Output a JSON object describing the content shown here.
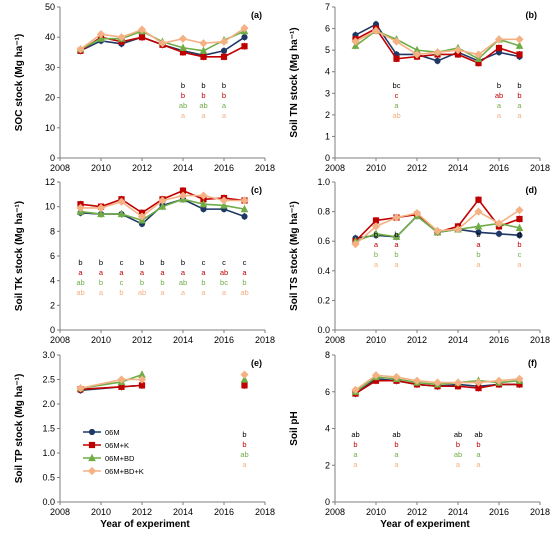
{
  "colors": {
    "06M": "#1f3864",
    "06M+K": "#c00000",
    "06M+BD": "#70ad47",
    "06M+BD+K": "#f4b183",
    "axis": "#7f7f7f"
  },
  "legend": [
    "06M",
    "06M+K",
    "06M+BD",
    "06M+BD+K"
  ],
  "x_axis_title": "Year of experiment",
  "chart_data": [
    {
      "id": "a",
      "panel_label": "(a)",
      "type": "line",
      "ylabel": "SOC stock (Mg ha⁻¹)",
      "xlim": [
        2008,
        2018
      ],
      "xticks": [
        2008,
        2010,
        2012,
        2014,
        2016,
        2018
      ],
      "ylim": [
        0,
        50
      ],
      "yticks": [
        0,
        10,
        20,
        30,
        40,
        50
      ],
      "x": [
        2009,
        2010,
        2011,
        2012,
        2013,
        2014,
        2015,
        2016,
        2017
      ],
      "series": [
        {
          "name": "06M",
          "values": [
            35.5,
            38.8,
            37.8,
            40,
            37.5,
            35.5,
            34,
            35.5,
            40
          ]
        },
        {
          "name": "06M+K",
          "values": [
            35.5,
            40,
            38.5,
            40,
            37.5,
            35,
            33.5,
            33.5,
            37
          ]
        },
        {
          "name": "06M+BD",
          "values": [
            36,
            39.5,
            39.5,
            42,
            38.5,
            36.5,
            35.5,
            39,
            42
          ]
        },
        {
          "name": "06M+BD+K",
          "values": [
            36,
            41,
            40,
            42.5,
            38,
            39.5,
            38,
            38.5,
            43
          ]
        }
      ],
      "letters": [
        {
          "x": 2014,
          "values": [
            "b",
            "b",
            "ab",
            "a"
          ]
        },
        {
          "x": 2015,
          "values": [
            "b",
            "b",
            "ab",
            "a"
          ]
        },
        {
          "x": 2016,
          "values": [
            "b",
            "b",
            "a",
            "a"
          ]
        }
      ]
    },
    {
      "id": "b",
      "panel_label": "(b)",
      "type": "line",
      "ylabel": "Soil TN stock (Mg ha⁻¹)",
      "xlim": [
        2008,
        2018
      ],
      "xticks": [
        2008,
        2010,
        2012,
        2014,
        2016,
        2018
      ],
      "ylim": [
        0,
        7
      ],
      "yticks": [
        0,
        1,
        2,
        3,
        4,
        5,
        6,
        7
      ],
      "x": [
        2009,
        2010,
        2011,
        2012,
        2013,
        2014,
        2015,
        2016,
        2017
      ],
      "series": [
        {
          "name": "06M",
          "values": [
            5.7,
            6.2,
            4.8,
            4.8,
            4.5,
            4.9,
            4.5,
            4.9,
            4.7
          ]
        },
        {
          "name": "06M+K",
          "values": [
            5.5,
            6,
            4.6,
            4.7,
            4.8,
            4.8,
            4.4,
            5.1,
            4.8
          ]
        },
        {
          "name": "06M+BD",
          "values": [
            5.2,
            5.9,
            5.5,
            5.0,
            4.9,
            5.1,
            4.6,
            5.5,
            5.2
          ]
        },
        {
          "name": "06M+BD+K",
          "values": [
            5.4,
            5.9,
            5.4,
            4.8,
            4.9,
            5.0,
            4.8,
            5.5,
            5.5
          ]
        }
      ],
      "letters": [
        {
          "x": 2011,
          "values": [
            "bc",
            "c",
            "a",
            "ab"
          ]
        },
        {
          "x": 2016,
          "values": [
            "b",
            "ab",
            "a",
            "a"
          ]
        },
        {
          "x": 2017,
          "values": [
            "b",
            "b",
            "a",
            "a"
          ]
        }
      ]
    },
    {
      "id": "c",
      "panel_label": "(c)",
      "type": "line",
      "ylabel": "Soil TK stock (Mg ha⁻¹)",
      "xlim": [
        2008,
        2018
      ],
      "xticks": [
        2008,
        2010,
        2012,
        2014,
        2016,
        2018
      ],
      "ylim": [
        0,
        12
      ],
      "yticks": [
        0,
        2,
        4,
        6,
        8,
        10,
        12
      ],
      "x": [
        2009,
        2010,
        2011,
        2012,
        2013,
        2014,
        2015,
        2016,
        2017
      ],
      "series": [
        {
          "name": "06M",
          "values": [
            9.5,
            9.4,
            9.4,
            8.6,
            10.1,
            10.6,
            9.8,
            9.8,
            9.2
          ]
        },
        {
          "name": "06M+K",
          "values": [
            10.2,
            10,
            10.6,
            9.5,
            10.6,
            11.3,
            10.6,
            10.7,
            10.5
          ]
        },
        {
          "name": "06M+BD",
          "values": [
            9.6,
            9.4,
            9.4,
            8.9,
            10.0,
            10.6,
            10.2,
            10.1,
            9.8
          ]
        },
        {
          "name": "06M+BD+K",
          "values": [
            9.9,
            9.9,
            10.4,
            9.2,
            10.5,
            10.9,
            10.9,
            10.5,
            10.5
          ]
        }
      ],
      "letters": [
        {
          "x": 2009,
          "values": [
            "b",
            "a",
            "ab",
            "ab"
          ]
        },
        {
          "x": 2010,
          "values": [
            "b",
            "a",
            "b",
            "a"
          ]
        },
        {
          "x": 2011,
          "values": [
            "c",
            "a",
            "c",
            "b"
          ]
        },
        {
          "x": 2012,
          "values": [
            "b",
            "a",
            "b",
            "ab"
          ]
        },
        {
          "x": 2013,
          "values": [
            "b",
            "a",
            "b",
            "a"
          ]
        },
        {
          "x": 2014,
          "values": [
            "b",
            "a",
            "ab",
            "a"
          ]
        },
        {
          "x": 2015,
          "values": [
            "c",
            "a",
            "b",
            "a"
          ]
        },
        {
          "x": 2016,
          "values": [
            "c",
            "ab",
            "bc",
            "a"
          ]
        },
        {
          "x": 2017,
          "values": [
            "c",
            "a",
            "b",
            "ab"
          ]
        }
      ]
    },
    {
      "id": "d",
      "panel_label": "(d)",
      "type": "line",
      "ylabel": "Soil TS stock (Mg ha⁻¹)",
      "xlim": [
        2008,
        2018
      ],
      "xticks": [
        2008,
        2010,
        2012,
        2014,
        2016,
        2018
      ],
      "ylim": [
        0,
        1.0
      ],
      "yticks": [
        0,
        0.2,
        0.4,
        0.6,
        0.8,
        1.0
      ],
      "x": [
        2009,
        2010,
        2011,
        2012,
        2013,
        2014,
        2015,
        2016,
        2017
      ],
      "series": [
        {
          "name": "06M",
          "values": [
            0.62,
            0.64,
            0.63,
            0.77,
            0.66,
            0.68,
            0.66,
            0.65,
            0.64
          ]
        },
        {
          "name": "06M+K",
          "values": [
            0.6,
            0.74,
            0.76,
            0.78,
            0.66,
            0.7,
            0.88,
            0.7,
            0.75
          ]
        },
        {
          "name": "06M+BD",
          "values": [
            0.6,
            0.65,
            0.63,
            0.77,
            0.66,
            0.68,
            0.7,
            0.72,
            0.69
          ]
        },
        {
          "name": "06M+BD+K",
          "values": [
            0.58,
            0.7,
            0.76,
            0.79,
            0.67,
            0.68,
            0.8,
            0.72,
            0.81
          ]
        }
      ],
      "letters": [
        {
          "x": 2010,
          "values": [
            "b",
            "a",
            "b",
            "a"
          ]
        },
        {
          "x": 2011,
          "values": [
            "b",
            "a",
            "b",
            "a"
          ]
        },
        {
          "x": 2015,
          "values": [
            "b",
            "a",
            "b",
            "a"
          ]
        },
        {
          "x": 2017,
          "values": [
            "d",
            "b",
            "c",
            "a"
          ]
        }
      ]
    },
    {
      "id": "e",
      "panel_label": "(e)",
      "type": "line",
      "ylabel": "Soil TP stock (Mg ha⁻¹)",
      "xlim": [
        2008,
        2018
      ],
      "xticks": [
        2008,
        2010,
        2012,
        2014,
        2016,
        2018
      ],
      "ylim": [
        0,
        3.0
      ],
      "yticks": [
        0,
        0.5,
        1.0,
        1.5,
        2.0,
        2.5,
        3.0
      ],
      "x": [
        2009,
        2011,
        2012,
        2017
      ],
      "series": [
        {
          "name": "06M",
          "values": [
            2.28,
            2.35,
            2.38,
            2.38
          ]
        },
        {
          "name": "06M+K",
          "values": [
            2.3,
            2.35,
            2.38,
            2.38
          ]
        },
        {
          "name": "06M+BD",
          "values": [
            2.32,
            2.45,
            2.6,
            2.5
          ]
        },
        {
          "name": "06M+BD+K",
          "values": [
            2.32,
            2.5,
            2.5,
            2.6
          ]
        }
      ],
      "letters": [
        {
          "x": 2017,
          "values": [
            "b",
            "b",
            "ab",
            "a"
          ]
        }
      ]
    },
    {
      "id": "f",
      "panel_label": "(f)",
      "type": "line",
      "ylabel": "Soil pH",
      "xlim": [
        2008,
        2018
      ],
      "xticks": [
        2008,
        2010,
        2012,
        2014,
        2016,
        2018
      ],
      "ylim": [
        0,
        8
      ],
      "yticks": [
        0,
        2,
        4,
        6,
        8
      ],
      "x": [
        2009,
        2010,
        2011,
        2012,
        2013,
        2014,
        2015,
        2016,
        2017
      ],
      "series": [
        {
          "name": "06M",
          "values": [
            5.9,
            6.7,
            6.6,
            6.4,
            6.3,
            6.4,
            6.3,
            6.4,
            6.4
          ]
        },
        {
          "name": "06M+K",
          "values": [
            5.9,
            6.6,
            6.6,
            6.4,
            6.3,
            6.3,
            6.2,
            6.4,
            6.4
          ]
        },
        {
          "name": "06M+BD",
          "values": [
            6.0,
            6.8,
            6.7,
            6.5,
            6.4,
            6.5,
            6.6,
            6.5,
            6.6
          ]
        },
        {
          "name": "06M+BD+K",
          "values": [
            6.1,
            6.9,
            6.8,
            6.6,
            6.5,
            6.5,
            6.5,
            6.6,
            6.7
          ]
        }
      ],
      "letters": [
        {
          "x": 2009,
          "values": [
            "ab",
            "b",
            "a",
            "a"
          ]
        },
        {
          "x": 2011,
          "values": [
            "ab",
            "b",
            "a",
            "a"
          ]
        },
        {
          "x": 2014,
          "values": [
            "ab",
            "b",
            "ab",
            "a"
          ]
        },
        {
          "x": 2015,
          "values": [
            "ab",
            "b",
            "a",
            "a"
          ]
        }
      ]
    }
  ]
}
